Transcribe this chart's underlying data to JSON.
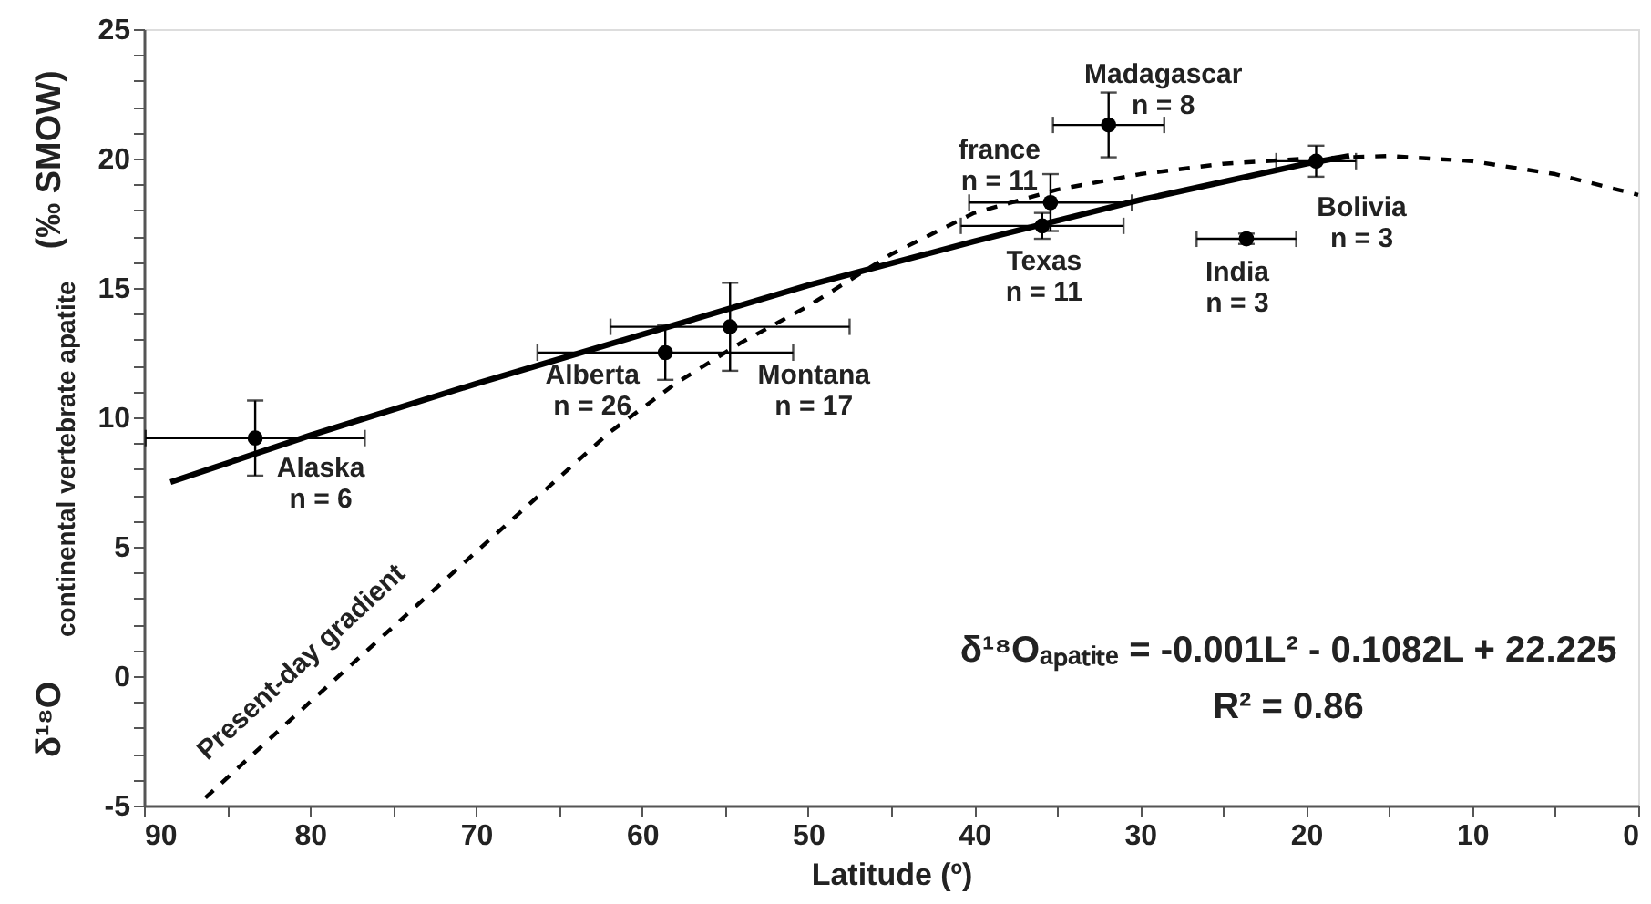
{
  "chart_data": {
    "type": "scatter",
    "xlabel": "Latitude (º)",
    "ylabel": "δ¹⁸O$_{continental vertebrate apatite}$ (‰ SMOW)",
    "xlim": [
      90,
      0
    ],
    "ylim": [
      -5,
      25
    ],
    "xticks": [
      90,
      {
        "value": 85,
        "label": null
      },
      80,
      {
        "value": 75,
        "label": null
      },
      70,
      {
        "value": 65,
        "label": null
      },
      60,
      {
        "value": 55,
        "label": null
      },
      50,
      {
        "value": 45,
        "label": null
      },
      40,
      {
        "value": 35,
        "label": null
      },
      30,
      {
        "value": 25,
        "label": null
      },
      20,
      {
        "value": 15,
        "label": null
      },
      10,
      {
        "value": 5,
        "label": null
      },
      0
    ],
    "yticks": [
      -5,
      {
        "value": -4,
        "label": null
      },
      {
        "value": -3,
        "label": null
      },
      {
        "value": -2,
        "label": null
      },
      {
        "value": -1,
        "label": null
      },
      0,
      {
        "value": 1,
        "label": null
      },
      {
        "value": 2,
        "label": null
      },
      {
        "value": 3,
        "label": null
      },
      {
        "value": 4,
        "label": null
      },
      5,
      {
        "value": 6,
        "label": null
      },
      {
        "value": 7,
        "label": null
      },
      {
        "value": 8,
        "label": null
      },
      {
        "value": 9,
        "label": null
      },
      10,
      {
        "value": 11,
        "label": null
      },
      {
        "value": 12,
        "label": null
      },
      {
        "value": 13,
        "label": null
      },
      {
        "value": 14,
        "label": null
      },
      15,
      {
        "value": 16,
        "label": null
      },
      {
        "value": 17,
        "label": null
      },
      {
        "value": 18,
        "label": null
      },
      {
        "value": 19,
        "label": null
      },
      20,
      {
        "value": 21,
        "label": null
      },
      {
        "value": 22,
        "label": null
      },
      {
        "value": 23,
        "label": null
      },
      {
        "value": 24,
        "label": null
      },
      25
    ],
    "grid": false,
    "series": [
      {
        "color": "#000000",
        "marker": "circle",
        "x": [
          83.3,
          58.6,
          54.7,
          35.4,
          35.9,
          31.9,
          23.6,
          19.4
        ],
        "values": [
          9.2,
          12.5,
          13.5,
          18.3,
          17.4,
          21.3,
          16.9,
          19.9
        ],
        "errors": [
          1.45,
          1.05,
          1.7,
          1.1,
          0.5,
          1.25,
          0.2,
          0.6
        ],
        "xerrors": [
          6.6,
          7.7,
          7.2,
          4.9,
          4.9,
          3.35,
          3.0,
          2.4
        ]
      },
      {
        "type": "line",
        "color": "#000000",
        "line_style": "solid",
        "x": [
          88.4,
          80,
          70,
          60,
          50,
          40,
          30,
          20,
          17.4
        ],
        "values": [
          7.5,
          9.3,
          11.3,
          13.2,
          15.1,
          16.8,
          18.4,
          19.8,
          20.1
        ]
      },
      {
        "type": "line",
        "color": "#000000",
        "line_style": "dashed",
        "x": [
          86.3,
          80,
          70,
          62,
          58,
          54,
          50,
          45,
          40,
          35,
          30,
          25,
          20,
          15,
          10,
          5,
          0
        ],
        "values": [
          -4.7,
          -1.0,
          4.8,
          9.4,
          11.3,
          12.9,
          14.3,
          16.3,
          17.9,
          18.8,
          19.4,
          19.8,
          20.0,
          20.1,
          19.9,
          19.4,
          18.6
        ]
      }
    ],
    "annotations": [
      "Alaska\nn = 6",
      "Alberta\nn = 26",
      "Montana\nn = 17",
      "france\nn = 11",
      "Texas\nn = 11",
      "Madagascar\nn = 8",
      "India\nn = 3",
      "Bolivia\nn = 3",
      "Present-day gradient",
      "δ¹⁸Oₐₚₐₜᵢₜₑ = -0.001L² - 0.1082L + 22.225",
      "R² = 0.86"
    ]
  }
}
